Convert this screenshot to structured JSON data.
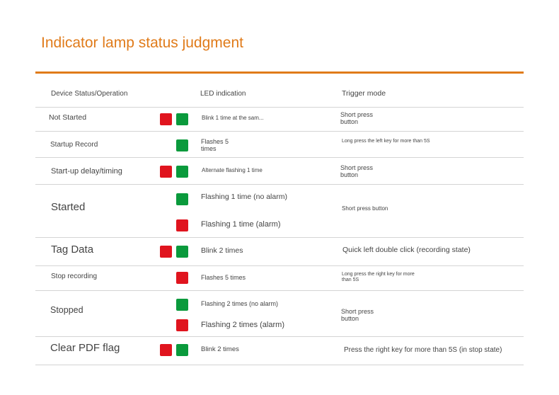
{
  "header": {
    "title": "Indicator lamp status judgment"
  },
  "table": {
    "columns": [
      "Device Status/Operation",
      "LED indication",
      "Trigger mode"
    ],
    "rows": [
      {
        "status": "Not Started",
        "led": [
          "Blink 1 time at the sam..."
        ],
        "trigger": "Short press button"
      },
      {
        "status": "Startup Record",
        "led": [
          "Flashes 5 times"
        ],
        "trigger": "Long press the left key for more than 5S"
      },
      {
        "status": "Start-up delay/timing",
        "led": [
          "Alternate flashing 1 time"
        ],
        "trigger": "Short press button"
      },
      {
        "status": "Started",
        "led": [
          "Flashing 1 time (no alarm)",
          "Flashing 1 time (alarm)"
        ],
        "trigger": "Short press button"
      },
      {
        "status": "Tag Data",
        "led": [
          "Blink 2 times"
        ],
        "trigger": "Quick left double click (recording state)"
      },
      {
        "status": "Stop recording",
        "led": [
          "Flashes 5 times"
        ],
        "trigger": "Long press the right key for more than 5S"
      },
      {
        "status": "Stopped",
        "led": [
          "Flashing 2 times (no alarm)",
          "Flashing 2 times (alarm)"
        ],
        "trigger": "Short press button"
      },
      {
        "status": "Clear PDF flag",
        "led": [
          "Blink 2 times"
        ],
        "trigger": "Press the right key for more than 5S (in stop state)"
      }
    ]
  }
}
